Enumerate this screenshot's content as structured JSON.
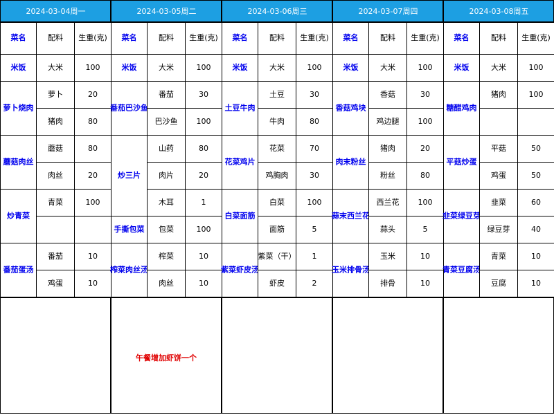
{
  "columns": [
    "菜名",
    "配料",
    "生重(克)"
  ],
  "days": [
    {
      "date": "2024-03-04周一",
      "dishes": [
        {
          "name": "米饭",
          "ingredients": [
            {
              "name": "大米",
              "weight": 100
            }
          ]
        },
        {
          "name": "萝卜烧肉",
          "ingredients": [
            {
              "name": "萝卜",
              "weight": 20
            },
            {
              "name": "猪肉",
              "weight": 80
            }
          ]
        },
        {
          "name": "蘑菇肉丝",
          "ingredients": [
            {
              "name": "蘑菇",
              "weight": 80
            },
            {
              "name": "肉丝",
              "weight": 20
            }
          ]
        },
        {
          "name": "炒青菜",
          "ingredients": [
            {
              "name": "青菜",
              "weight": 100
            }
          ]
        },
        {
          "name": "番茄蛋汤",
          "ingredients": [
            {
              "name": "番茄",
              "weight": 10
            },
            {
              "name": "鸡蛋",
              "weight": 10
            }
          ]
        }
      ]
    },
    {
      "date": "2024-03-05周二",
      "dishes": [
        {
          "name": "米饭",
          "ingredients": [
            {
              "name": "大米",
              "weight": 100
            }
          ]
        },
        {
          "name": "番茄巴沙鱼",
          "ingredients": [
            {
              "name": "番茄",
              "weight": 30
            },
            {
              "name": "巴沙鱼",
              "weight": 100
            }
          ]
        },
        {
          "name": "炒三片",
          "ingredients": [
            {
              "name": "山药",
              "weight": 80
            },
            {
              "name": "肉片",
              "weight": 20
            },
            {
              "name": "木耳",
              "weight": 1
            }
          ]
        },
        {
          "name": "手撕包菜",
          "ingredients": [
            {
              "name": "包菜",
              "weight": 100
            }
          ]
        },
        {
          "name": "榨菜肉丝汤",
          "ingredients": [
            {
              "name": "榨菜",
              "weight": 10
            },
            {
              "name": "肉丝",
              "weight": 10
            }
          ]
        }
      ]
    },
    {
      "date": "2024-03-06周三",
      "dishes": [
        {
          "name": "米饭",
          "ingredients": [
            {
              "name": "大米",
              "weight": 100
            }
          ]
        },
        {
          "name": "土豆牛肉",
          "ingredients": [
            {
              "name": "土豆",
              "weight": 30
            },
            {
              "name": "牛肉",
              "weight": 80
            }
          ]
        },
        {
          "name": "花菜鸡片",
          "ingredients": [
            {
              "name": "花菜",
              "weight": 70
            },
            {
              "name": "鸡胸肉",
              "weight": 30
            }
          ]
        },
        {
          "name": "白菜面筋",
          "ingredients": [
            {
              "name": "白菜",
              "weight": 100
            },
            {
              "name": "面筋",
              "weight": 5
            }
          ]
        },
        {
          "name": "紫菜虾皮汤",
          "ingredients": [
            {
              "name": "紫菜（干）",
              "weight": 1
            },
            {
              "name": "虾皮",
              "weight": 2
            }
          ]
        }
      ]
    },
    {
      "date": "2024-03-07周四",
      "dishes": [
        {
          "name": "米饭",
          "ingredients": [
            {
              "name": "大米",
              "weight": 100
            }
          ]
        },
        {
          "name": "香菇鸡块",
          "ingredients": [
            {
              "name": "香菇",
              "weight": 30
            },
            {
              "name": "鸡边腿",
              "weight": 100
            }
          ]
        },
        {
          "name": "肉末粉丝",
          "ingredients": [
            {
              "name": "猪肉",
              "weight": 20
            },
            {
              "name": "粉丝",
              "weight": 80
            }
          ]
        },
        {
          "name": "蒜末西兰花",
          "ingredients": [
            {
              "name": "西兰花",
              "weight": 100
            },
            {
              "name": "蒜头",
              "weight": 5
            }
          ]
        },
        {
          "name": "玉米排骨汤",
          "ingredients": [
            {
              "name": "玉米",
              "weight": 10
            },
            {
              "name": "排骨",
              "weight": 10
            }
          ]
        }
      ]
    },
    {
      "date": "2024-03-08周五",
      "dishes": [
        {
          "name": "米饭",
          "ingredients": [
            {
              "name": "大米",
              "weight": 100
            }
          ]
        },
        {
          "name": "糖醋鸡肉",
          "ingredients": [
            {
              "name": "猪肉",
              "weight": 100
            }
          ]
        },
        {
          "name": "平菇炒蛋",
          "ingredients": [
            {
              "name": "平菇",
              "weight": 50
            },
            {
              "name": "鸡蛋",
              "weight": 50
            }
          ]
        },
        {
          "name": "韭菜绿豆芽",
          "ingredients": [
            {
              "name": "韭菜",
              "weight": 60
            },
            {
              "name": "绿豆芽",
              "weight": 40
            }
          ]
        },
        {
          "name": "青菜豆腐汤",
          "ingredients": [
            {
              "name": "青菜",
              "weight": 10
            },
            {
              "name": "豆腐",
              "weight": 10
            }
          ]
        }
      ]
    }
  ],
  "note": "午餐增加虾饼一个"
}
